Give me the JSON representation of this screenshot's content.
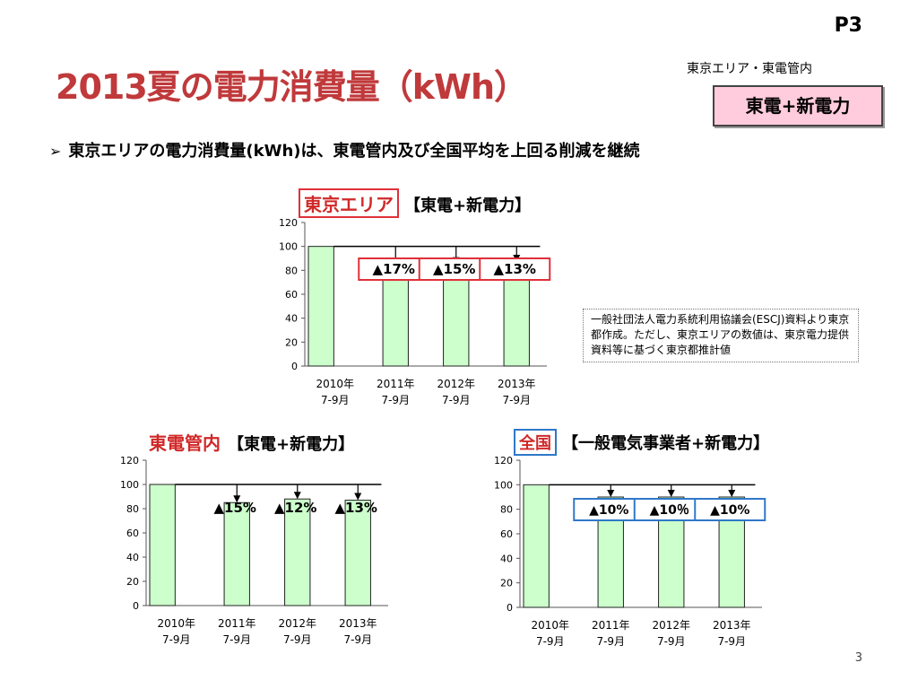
{
  "slide": {
    "page_label": "P3",
    "title": "2013夏の電力消費量（kWh）",
    "scope_caption": "東京エリア・東電管内",
    "scope_box": "東電+新電力",
    "bullet": "東京エリアの電力消費量(kWh)は、東電管内及び全国平均を上回る削減を継続",
    "note": "一般社団法人電力系統利用協議会(ESCJ)資料より東京都作成。ただし、東京エリアの数値は、東京電力提供資料等に基づく東京都推計値",
    "page_number": "3"
  },
  "colors": {
    "bar_fill": "#ccffcc",
    "red_box": "#e0303a",
    "blue_box": "#2f78c8",
    "title": "#c0393b"
  },
  "chart_data": [
    {
      "type": "bar",
      "tag": "東京エリア",
      "title": "【東電+新電力】",
      "categories": [
        "2010年\n7-9月",
        "2011年\n7-9月",
        "2012年\n7-9月",
        "2013年\n7-9月"
      ],
      "values": [
        100,
        83,
        85,
        87
      ],
      "reductions": [
        "▲17%",
        "▲15%",
        "▲13%"
      ],
      "ylim": [
        0,
        120
      ],
      "yticks": [
        0,
        20,
        40,
        60,
        80,
        100,
        120
      ]
    },
    {
      "type": "bar",
      "tag": "東電管内",
      "title": "【東電+新電力】",
      "categories": [
        "2010年\n7-9月",
        "2011年\n7-9月",
        "2012年\n7-9月",
        "2013年\n7-9月"
      ],
      "values": [
        100,
        85,
        88,
        87
      ],
      "reductions": [
        "▲15%",
        "▲12%",
        "▲13%"
      ],
      "ylim": [
        0,
        120
      ],
      "yticks": [
        0,
        20,
        40,
        60,
        80,
        100,
        120
      ]
    },
    {
      "type": "bar",
      "tag": "全国",
      "title": "【一般電気事業者+新電力】",
      "categories": [
        "2010年\n7-9月",
        "2011年\n7-9月",
        "2012年\n7-9月",
        "2013年\n7-9月"
      ],
      "values": [
        100,
        90,
        90,
        90
      ],
      "reductions": [
        "▲10%",
        "▲10％",
        "▲10%"
      ],
      "ylim": [
        0,
        120
      ],
      "yticks": [
        0,
        20,
        40,
        60,
        80,
        100,
        120
      ]
    }
  ]
}
